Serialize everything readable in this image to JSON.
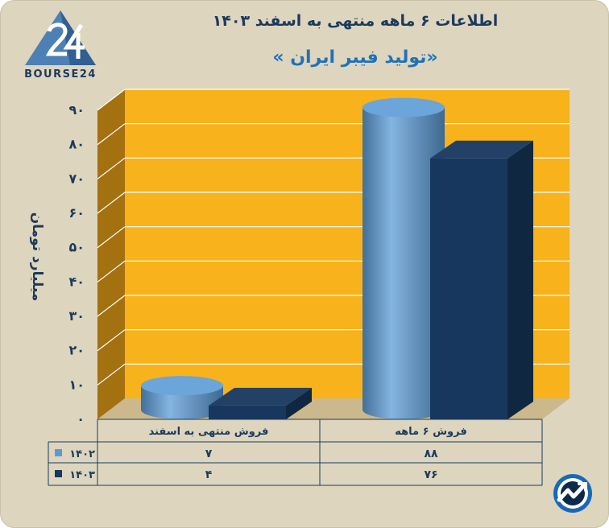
{
  "header": {
    "title": "اطلاعات ۶ ماهه منتهی به اسفند ۱۴۰۳",
    "subtitle": "«تولید فیبر ایران »"
  },
  "logo": {
    "text": "BOURSE24"
  },
  "chart_data": {
    "type": "bar",
    "categories": [
      "فروش منتهی به  اسفند",
      "فروش ۶  ماهه"
    ],
    "series": [
      {
        "name": "۱۴۰۲",
        "values": [
          7,
          88
        ],
        "color": "#5b9bd5",
        "display": [
          "۷",
          "۸۸"
        ]
      },
      {
        "name": "۱۴۰۳",
        "values": [
          4,
          76
        ],
        "color": "#17375e",
        "display": [
          "۴",
          "۷۶"
        ]
      }
    ],
    "ylabel": "میلیارد تومان",
    "ylim": [
      0,
      90
    ],
    "yticks": [
      0,
      10,
      20,
      30,
      40,
      50,
      60,
      70,
      80,
      90
    ],
    "ytick_labels": [
      "۰",
      "۱۰",
      "۲۰",
      "۳۰",
      "۴۰",
      "۵۰",
      "۶۰",
      "۷۰",
      "۸۰",
      "۹۰"
    ],
    "data_table": true,
    "background": "#f7b21c",
    "grid": true
  }
}
